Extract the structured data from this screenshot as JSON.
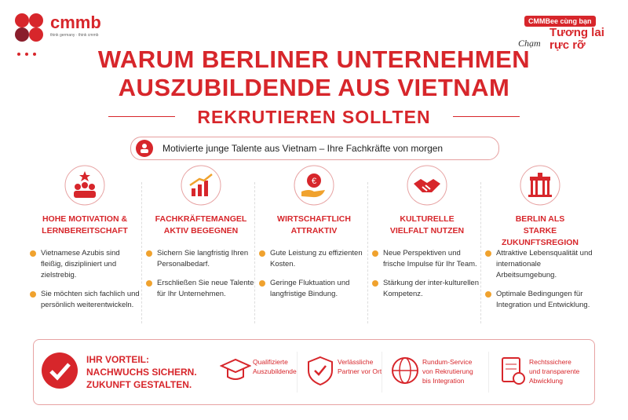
{
  "header": {
    "logo": "cmmb",
    "logo_tagline": "think germany · think cmmb",
    "badge": {
      "top": "CMMBee cùng bạn",
      "script": "Chạm",
      "main": [
        "Tương lai",
        "rực rỡ"
      ]
    },
    "title": [
      "WARUM BERLINER UNTERNEHMEN",
      "AUSZUBILDENDE AUS VIETNAM"
    ],
    "subtitle": "REKRUTIEREN SOLLTEN",
    "tagline": "Motivierte junge Talente aus Vietnam – Ihre Fachkräfte von morgen"
  },
  "columns": [
    {
      "title": [
        "HOHE MOTIVATION &",
        "LERNBEREITSCHAFT"
      ],
      "bullets": [
        "Vietnamese Azubis sind fleißig, diszipliniert und zielstrebig.",
        "Sie möchten sich fachlich und persönlich weiterentwickeln."
      ]
    },
    {
      "title": [
        "FACHKRÄFTEMANGEL",
        "AKTIV BEGEGNEN"
      ],
      "bullets": [
        "Sichern Sie langfristig Ihren Personalbedarf.",
        "Erschließen Sie neue Talente für Ihr Unternehmen."
      ]
    },
    {
      "title": [
        "WIRTSCHAFTLICH",
        "ATTRAKTIV"
      ],
      "bullets": [
        "Gute Leistung zu effizienten Kosten.",
        "Geringe Fluktuation und langfristige Bindung."
      ]
    },
    {
      "title": [
        "KULTURELLE",
        "VIELFALT NUTZEN"
      ],
      "bullets": [
        "Neue Perspektiven und frische Impulse für Ihr Team.",
        "Stärkung der inter-kulturellen Kompetenz."
      ]
    },
    {
      "title": [
        "BERLIN ALS",
        "STARKE ZUKUNFTSREGION"
      ],
      "bullets": [
        "Attraktive Lebensqualität und internationale Arbeitsumgebung.",
        "Optimale Bedingungen für Integration und Entwicklung."
      ]
    }
  ],
  "footer": {
    "headline": [
      "IHR VORTEIL:",
      "NACHWUCHS SICHERN.",
      "ZUKUNFT GESTALTEN."
    ],
    "features": [
      [
        "Qualifizierte",
        "Auszubildende"
      ],
      [
        "Verlässliche",
        "Partner vor Ort"
      ],
      [
        "Rundum-Service",
        "von Rekrutierung",
        "bis Integration"
      ],
      [
        "Rechtssichere",
        "und transparente",
        "Abwicklung"
      ]
    ]
  }
}
